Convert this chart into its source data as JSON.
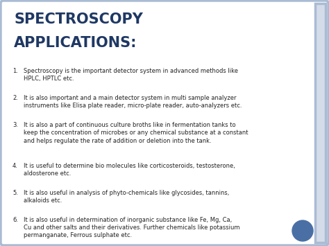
{
  "title_line1": "SPECTROSCOPY",
  "title_line2": "APPLICATIONS:",
  "title_color": "#1F3864",
  "background_color": "#e8eef5",
  "inner_bg_color": "#ffffff",
  "border_color": "#aabbd4",
  "circle_color": "#4a6fa5",
  "items": [
    "Spectroscopy is the important detector system in advanced methods like\nHPLC, HPTLC etc.",
    "It is also important and a main detector system in multi sample analyzer\ninstruments like Elisa plate reader, micro-plate reader, auto-analyzers etc.",
    "It is also a part of continuous culture broths like in fermentation tanks to\nkeep the concentration of microbes or any chemical substance at a constant\nand helps regulate the rate of addition or deletion into the tank.",
    "It is useful to determine bio molecules like corticosteroids, testosterone,\naldosterone etc.",
    "It is also useful in analysis of phyto-chemicals like glycosides, tannins,\nalkaloids etc.",
    "It is also useful in determination of inorganic substance like Fe, Mg, Ca,\nCu and other salts and their derivatives. Further chemicals like potassium\npermanganate, Ferrous sulphate etc."
  ],
  "text_color": "#222222",
  "title_fontsize": 15,
  "body_fontsize": 6.0,
  "number_fontsize": 6.0
}
